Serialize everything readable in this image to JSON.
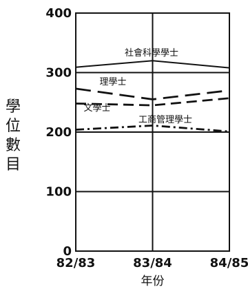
{
  "chart_data": {
    "type": "line",
    "categories": [
      "82/83",
      "83/84",
      "84/85"
    ],
    "xlabel": "年份",
    "ylabel": "學位數目",
    "ylim": [
      0,
      400
    ],
    "yticks": [
      0,
      100,
      200,
      300,
      400
    ],
    "grid": "horizontal",
    "series": [
      {
        "name": "社會科學學士",
        "values": [
          309,
          320,
          308
        ],
        "style": "solid"
      },
      {
        "name": "理學士",
        "values": [
          273,
          255,
          270
        ],
        "style": "long-dash"
      },
      {
        "name": "文學士",
        "values": [
          248,
          245,
          257
        ],
        "style": "dash"
      },
      {
        "name": "工商管理學士",
        "values": [
          204,
          211,
          201
        ],
        "style": "dash-dot"
      }
    ]
  }
}
